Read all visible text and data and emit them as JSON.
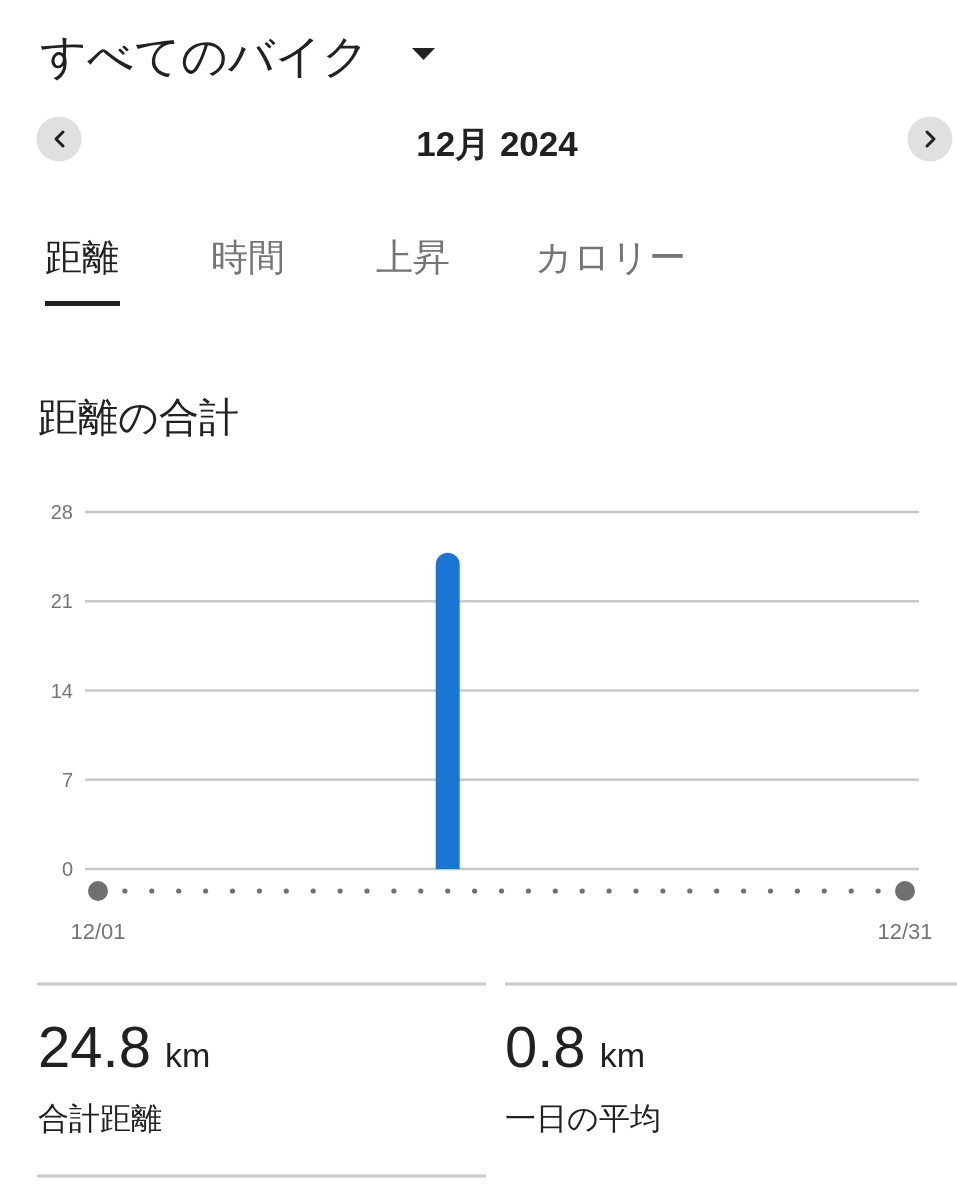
{
  "chart_data": {
    "type": "bar",
    "title": "距離の合計",
    "categories": [
      "12/01",
      null,
      null,
      null,
      null,
      null,
      null,
      null,
      null,
      null,
      null,
      null,
      null,
      null,
      null,
      null,
      null,
      null,
      null,
      null,
      null,
      null,
      null,
      null,
      null,
      null,
      null,
      null,
      null,
      null,
      "12/31"
    ],
    "values": [
      null,
      null,
      null,
      null,
      null,
      null,
      null,
      null,
      null,
      null,
      null,
      null,
      null,
      24.8,
      null,
      null,
      null,
      null,
      null,
      null,
      null,
      null,
      null,
      null,
      null,
      null,
      null,
      null,
      null,
      null,
      null
    ],
    "color": "#1976d2",
    "ylim": [
      0,
      28
    ],
    "yticks": [
      0,
      7,
      14,
      21,
      28
    ],
    "grid": "y",
    "annotations": [
      "すべてのバイク",
      "12月 2024",
      "距離",
      "時間",
      "上昇",
      "カロリー",
      "24.8",
      "km",
      "合計距離",
      "0.8",
      "km",
      "一日の平均"
    ]
  }
}
